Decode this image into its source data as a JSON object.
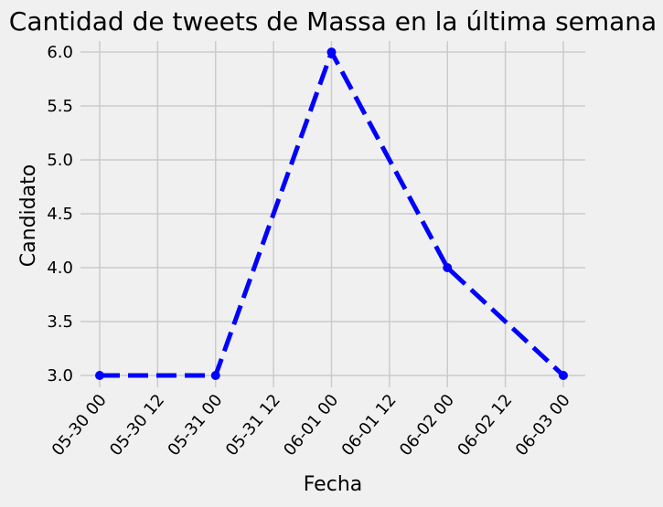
{
  "chart_data": {
    "type": "line",
    "title": "Cantidad de tweets de Massa en la última semana",
    "xlabel": "Fecha",
    "ylabel": "Candidato",
    "x_ticks": [
      "05-30 00",
      "05-30 12",
      "05-31 00",
      "05-31 12",
      "06-01 00",
      "06-01 12",
      "06-02 00",
      "06-02 12",
      "06-03 00"
    ],
    "y_ticks": [
      "3.0",
      "3.5",
      "4.0",
      "4.5",
      "5.0",
      "5.5",
      "6.0"
    ],
    "x_range": [
      "05-30 00",
      "06-03 00"
    ],
    "ylim": [
      3.0,
      6.0
    ],
    "grid": true,
    "series": [
      {
        "color": "#0000ff",
        "line_style": "dashed",
        "marker": "circle",
        "x": [
          "05-30 00",
          "05-31 00",
          "06-01 00",
          "06-02 00",
          "06-03 00"
        ],
        "values": [
          3,
          3,
          6,
          4,
          3
        ]
      }
    ],
    "colors": {
      "background": "#f0f0f0",
      "grid": "#cbcbcb",
      "text": "#000000"
    }
  }
}
